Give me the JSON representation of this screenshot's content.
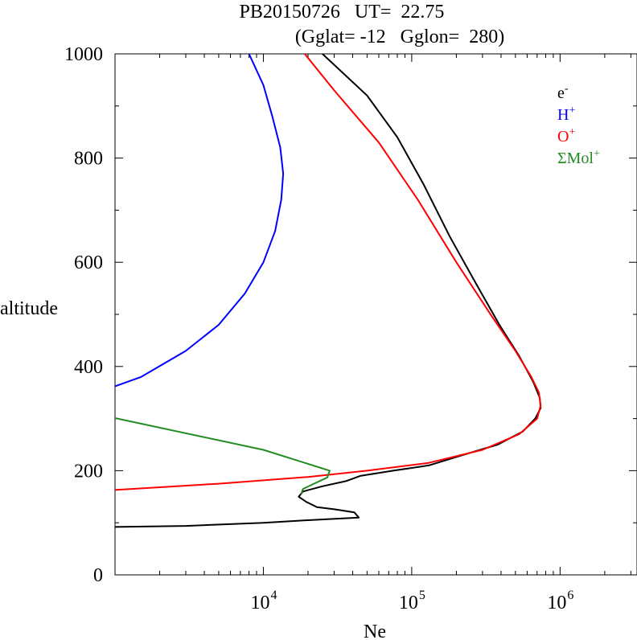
{
  "chart_data": {
    "type": "line",
    "title": "PB20150726   UT=  22.75",
    "subtitle": "(Gglat= -12   Gglon=  280)",
    "xlabel": "Ne",
    "ylabel": "altitude",
    "xscale": "log",
    "xlim": [
      1000,
      3300000
    ],
    "ylim": [
      0,
      1000
    ],
    "grid": false,
    "legend_position": "top-right",
    "x_ticks": [
      {
        "value": 10000,
        "base": "10",
        "exp": "4"
      },
      {
        "value": 100000,
        "base": "10",
        "exp": "5"
      },
      {
        "value": 1000000,
        "base": "10",
        "exp": "6"
      }
    ],
    "y_ticks": [
      {
        "value": 0,
        "label": "0"
      },
      {
        "value": 200,
        "label": "200"
      },
      {
        "value": 400,
        "label": "400"
      },
      {
        "value": 600,
        "label": "600"
      },
      {
        "value": 800,
        "label": "800"
      },
      {
        "value": 1000,
        "label": "1000"
      }
    ],
    "series": [
      {
        "name": "e",
        "name_sup": "-",
        "color": "#000000",
        "points": [
          [
            1000,
            92
          ],
          [
            3000,
            94
          ],
          [
            10000,
            100
          ],
          [
            20000,
            105
          ],
          [
            44000,
            110
          ],
          [
            41000,
            120
          ],
          [
            30000,
            126
          ],
          [
            23000,
            130
          ],
          [
            19500,
            140
          ],
          [
            17300,
            150
          ],
          [
            18500,
            160
          ],
          [
            25000,
            170
          ],
          [
            36000,
            180
          ],
          [
            45000,
            190
          ],
          [
            75000,
            200
          ],
          [
            130000,
            210
          ],
          [
            220000,
            230
          ],
          [
            380000,
            250
          ],
          [
            560000,
            275
          ],
          [
            680000,
            300
          ],
          [
            740000,
            320
          ],
          [
            730000,
            340
          ],
          [
            660000,
            370
          ],
          [
            530000,
            420
          ],
          [
            390000,
            480
          ],
          [
            270000,
            560
          ],
          [
            180000,
            650
          ],
          [
            120000,
            750
          ],
          [
            80000,
            840
          ],
          [
            50000,
            920
          ],
          [
            25000,
            1000
          ]
        ]
      },
      {
        "name": "H",
        "name_sup": "+",
        "color": "#0000ff",
        "points": [
          [
            1000,
            362
          ],
          [
            1500,
            380
          ],
          [
            3000,
            430
          ],
          [
            5000,
            480
          ],
          [
            7500,
            540
          ],
          [
            10000,
            600
          ],
          [
            12000,
            660
          ],
          [
            13200,
            720
          ],
          [
            13600,
            770
          ],
          [
            13000,
            820
          ],
          [
            11500,
            880
          ],
          [
            10000,
            940
          ],
          [
            8000,
            1000
          ]
        ]
      },
      {
        "name": "O",
        "name_sup": "+",
        "color": "#ff0000",
        "points": [
          [
            1000,
            163
          ],
          [
            5000,
            175
          ],
          [
            20000,
            188
          ],
          [
            50000,
            200
          ],
          [
            130000,
            215
          ],
          [
            300000,
            240
          ],
          [
            530000,
            270
          ],
          [
            700000,
            300
          ],
          [
            740000,
            325
          ],
          [
            720000,
            350
          ],
          [
            640000,
            380
          ],
          [
            500000,
            430
          ],
          [
            340000,
            500
          ],
          [
            200000,
            600
          ],
          [
            110000,
            720
          ],
          [
            60000,
            830
          ],
          [
            30000,
            930
          ],
          [
            19000,
            1000
          ]
        ]
      },
      {
        "name": "ΣMol",
        "name_sup": "+",
        "color": "#228b22",
        "points": [
          [
            1000,
            301
          ],
          [
            10000,
            240
          ],
          [
            28000,
            200
          ],
          [
            27000,
            187
          ],
          [
            18500,
            165
          ],
          [
            18000,
            155
          ]
        ]
      }
    ]
  }
}
